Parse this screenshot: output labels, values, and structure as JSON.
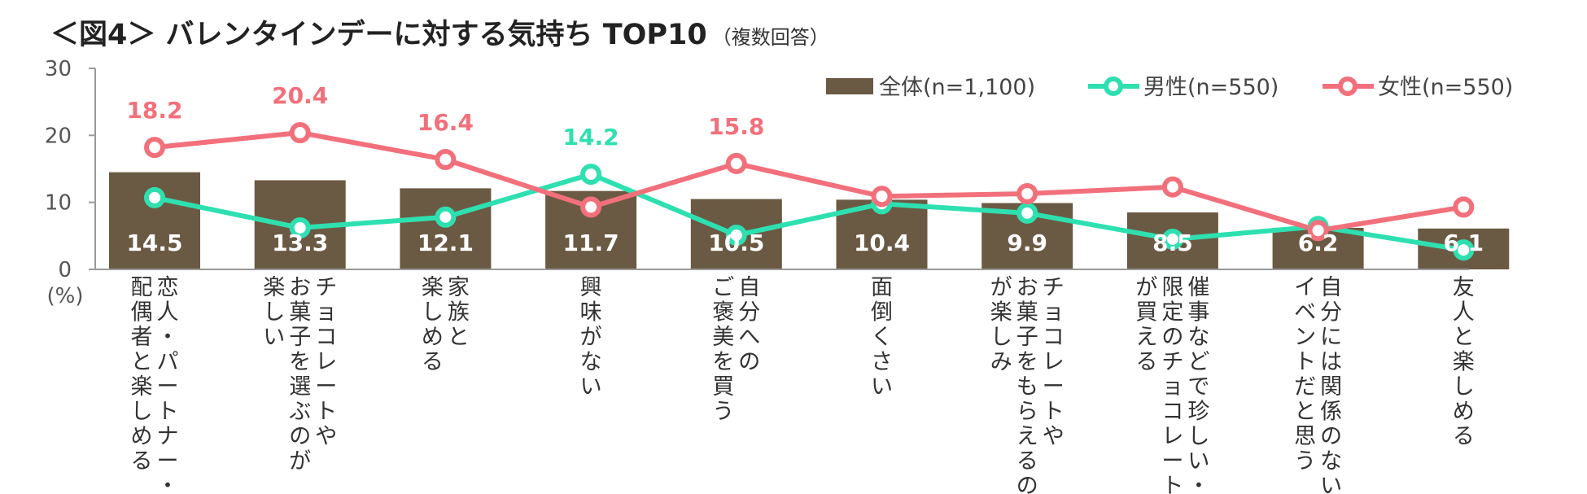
{
  "header": {
    "title": "＜図4＞ バレンタインデーに対する気持ち TOP10",
    "subtitle": "（複数回答）"
  },
  "colors": {
    "total": "#6b5a43",
    "male": "#2ee0b0",
    "female": "#f2707b"
  },
  "chart_data": {
    "type": "bar",
    "title": "＜図4＞ バレンタインデーに対する気持ち TOP10",
    "subtitle": "（複数回答）",
    "ylabel": "(%)",
    "ylim": [
      0,
      30
    ],
    "yticks": [
      "0",
      "10",
      "20",
      "30"
    ],
    "legend_position": "top-right",
    "categories": [
      [
        "恋人・パートナー・",
        "配偶者と楽しめる"
      ],
      [
        "チョコレートや",
        "お菓子を選ぶのが",
        "楽しい"
      ],
      [
        "家族と",
        "楽しめる"
      ],
      [
        "興味がない"
      ],
      [
        "自分への",
        "ご褒美を買う"
      ],
      [
        "面倒くさい"
      ],
      [
        "チョコレートや",
        "お菓子をもらえるの",
        "が楽しみ"
      ],
      [
        "催事などで珍しい・",
        "限定のチョコレート",
        "が買える"
      ],
      [
        "自分には関係のない",
        "イベントだと思う"
      ],
      [
        "友人と楽しめる"
      ]
    ],
    "series": [
      {
        "name": "全体(n=1,100)",
        "kind": "bar",
        "values": [
          14.5,
          13.3,
          12.1,
          11.7,
          10.5,
          10.4,
          9.9,
          8.5,
          6.2,
          6.1
        ],
        "labels": [
          "14.5",
          "13.3",
          "12.1",
          "11.7",
          "10.5",
          "10.4",
          "9.9",
          "8.5",
          "6.2",
          "6.1"
        ]
      },
      {
        "name": "男性(n=550)",
        "kind": "line",
        "values": [
          10.7,
          6.2,
          7.8,
          14.2,
          5.1,
          9.8,
          8.4,
          4.5,
          6.4,
          2.9
        ],
        "highlight": [
          {
            "index": 3,
            "label": "14.2"
          }
        ]
      },
      {
        "name": "女性(n=550)",
        "kind": "line",
        "values": [
          18.2,
          20.4,
          16.4,
          9.3,
          15.8,
          10.9,
          11.3,
          12.3,
          5.8,
          9.3
        ],
        "highlight": [
          {
            "index": 0,
            "label": "18.2"
          },
          {
            "index": 1,
            "label": "20.4"
          },
          {
            "index": 2,
            "label": "16.4"
          },
          {
            "index": 4,
            "label": "15.8"
          }
        ]
      }
    ]
  }
}
